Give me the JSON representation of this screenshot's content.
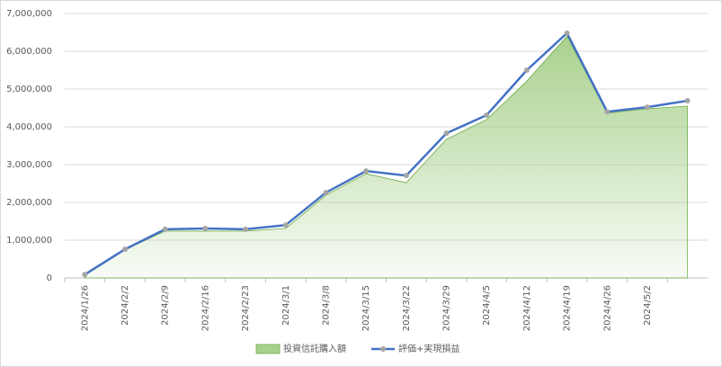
{
  "chart_data": {
    "type": "line",
    "categories": [
      "2024/1/26",
      "2024/2/2",
      "2024/2/9",
      "2024/2/16",
      "2024/2/23",
      "2024/3/1",
      "2024/3/8",
      "2024/3/15",
      "2024/3/22",
      "2024/3/29",
      "2024/4/5",
      "2024/4/12",
      "2024/4/19",
      "2024/4/26",
      "2024/5/2",
      null
    ],
    "series": [
      {
        "name": "投資信託購入額",
        "type": "area",
        "color": "#a9d18e",
        "edge_color": "#70ad47",
        "values": [
          90000,
          750000,
          1240000,
          1240000,
          1240000,
          1310000,
          2190000,
          2760000,
          2520000,
          3670000,
          4190000,
          5210000,
          6400000,
          4360000,
          4480000,
          4550000
        ]
      },
      {
        "name": "評価+実現損益",
        "type": "line",
        "color": "#4472c4",
        "marker_color": "#a5a5a5",
        "values": [
          90000,
          760000,
          1290000,
          1310000,
          1290000,
          1400000,
          2260000,
          2830000,
          2710000,
          3830000,
          4310000,
          5500000,
          6480000,
          4400000,
          4520000,
          4690000
        ]
      }
    ],
    "ylim": [
      0,
      7000000
    ],
    "yticks": [
      0,
      {
        "value": 1000000,
        "label": "1,000,000"
      },
      {
        "value": 2000000,
        "label": "2,000,000"
      },
      {
        "value": 3000000,
        "label": "3,000,000"
      },
      {
        "value": 4000000,
        "label": "4,000,000"
      },
      {
        "value": 5000000,
        "label": "5,000,000"
      },
      {
        "value": 6000000,
        "label": "6,000,000"
      },
      {
        "value": 7000000,
        "label": "7,000,000"
      }
    ],
    "grid": true,
    "legend": "bottom"
  }
}
